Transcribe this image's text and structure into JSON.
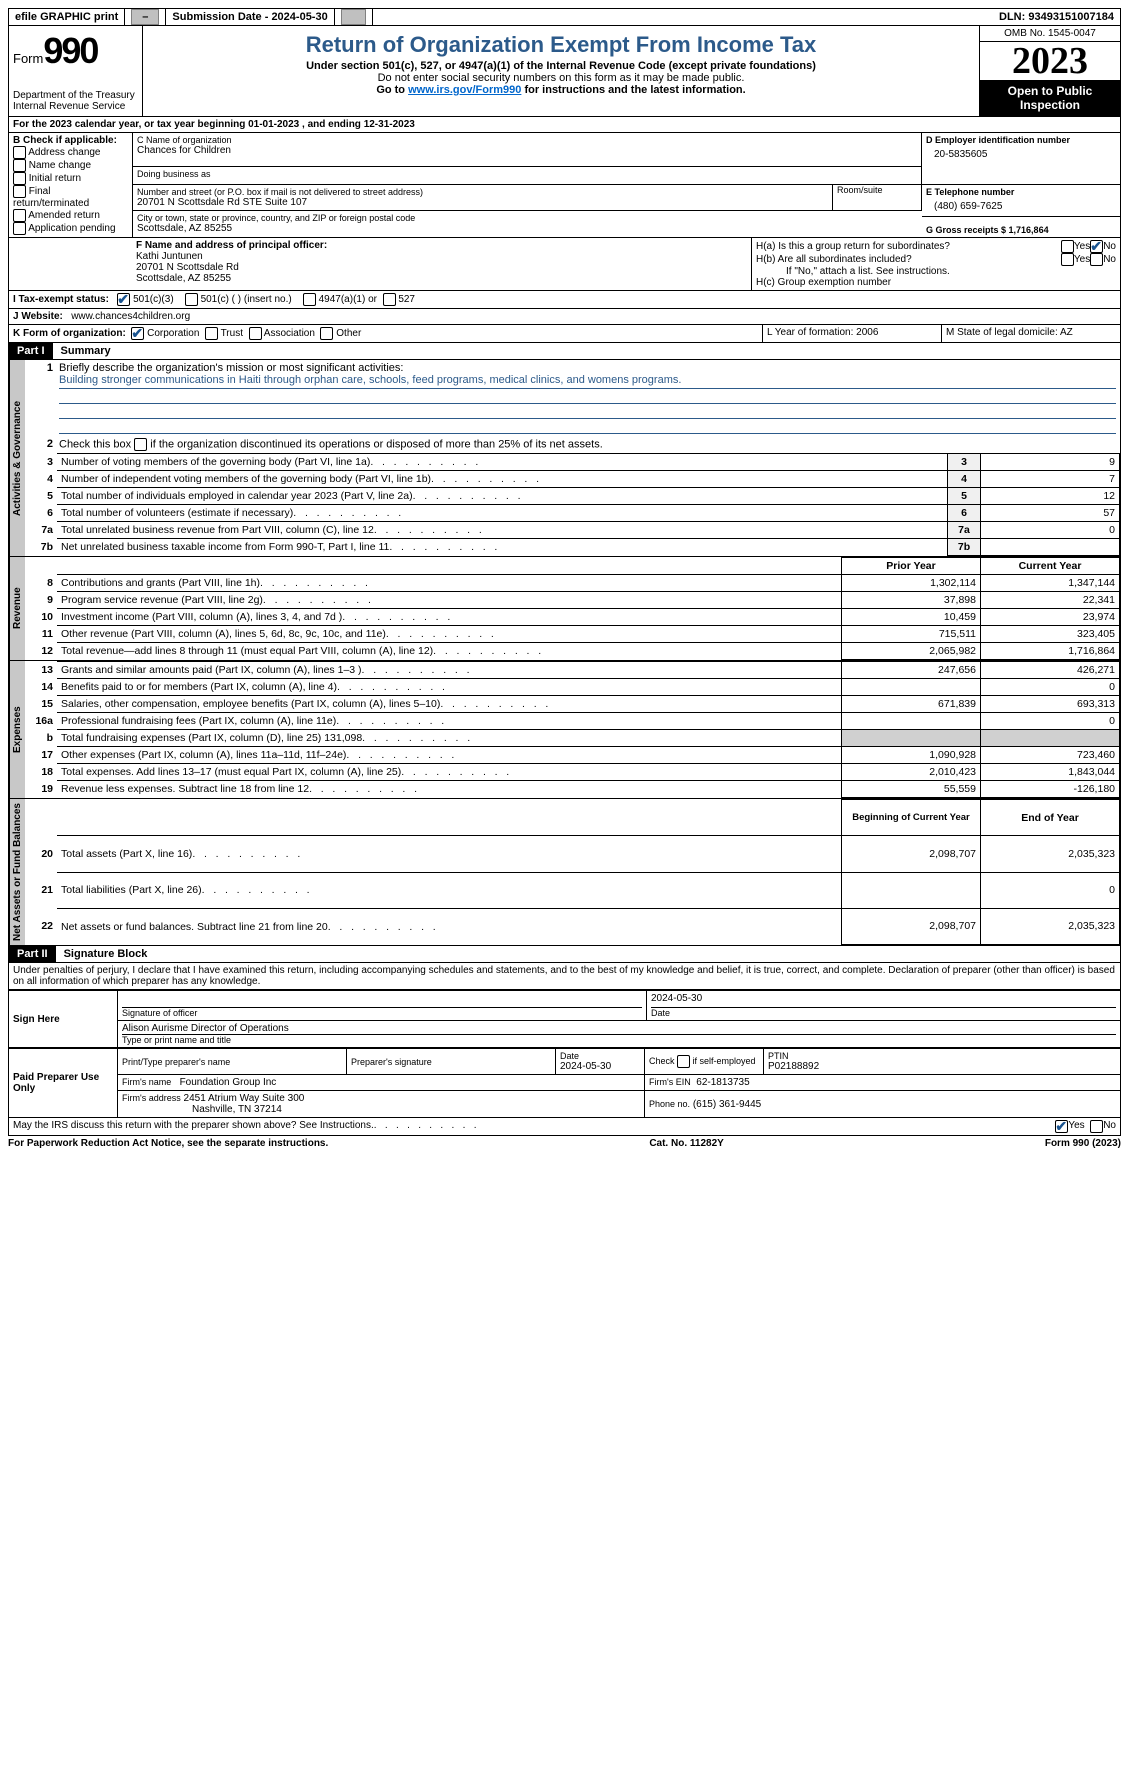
{
  "topbar": {
    "efile": "efile GRAPHIC print",
    "submission_label": "Submission Date - 2024-05-30",
    "dln": "DLN: 93493151007184"
  },
  "header": {
    "form_prefix": "Form",
    "form_num": "990",
    "dept": "Department of the Treasury",
    "irs": "Internal Revenue Service",
    "title": "Return of Organization Exempt From Income Tax",
    "subtitle": "Under section 501(c), 527, or 4947(a)(1) of the Internal Revenue Code (except private foundations)",
    "note1": "Do not enter social security numbers on this form as it may be made public.",
    "note2_pre": "Go to ",
    "note2_link": "www.irs.gov/Form990",
    "note2_post": " for instructions and the latest information.",
    "omb": "OMB No. 1545-0047",
    "year": "2023",
    "inspect": "Open to Public Inspection"
  },
  "lineA": "For the 2023 calendar year, or tax year beginning 01-01-2023    , and ending 12-31-2023",
  "boxB": {
    "label": "B Check if applicable:",
    "opts": [
      "Address change",
      "Name change",
      "Initial return",
      "Final return/terminated",
      "Amended return",
      "Application pending"
    ]
  },
  "boxC": {
    "name_label": "C Name of organization",
    "name": "Chances for Children",
    "dba_label": "Doing business as",
    "addr_label": "Number and street (or P.O. box if mail is not delivered to street address)",
    "addr": "20701 N Scottsdale Rd STE Suite 107",
    "room_label": "Room/suite",
    "city_label": "City or town, state or province, country, and ZIP or foreign postal code",
    "city": "Scottsdale, AZ  85255"
  },
  "boxD": {
    "label": "D Employer identification number",
    "val": "20-5835605"
  },
  "boxE": {
    "label": "E Telephone number",
    "val": "(480) 659-7625"
  },
  "boxG": {
    "label": "G Gross receipts $ 1,716,864"
  },
  "boxF": {
    "label": "F  Name and address of principal officer:",
    "name": "Kathi Juntunen",
    "addr1": "20701 N Scottsdale Rd",
    "addr2": "Scottsdale, AZ  85255"
  },
  "boxH": {
    "a": "H(a)  Is this a group return for subordinates?",
    "b": "H(b)  Are all subordinates included?",
    "b_note": "If \"No,\" attach a list. See instructions.",
    "c": "H(c)  Group exemption number"
  },
  "boxI": {
    "label": "I     Tax-exempt status:",
    "o1": "501(c)(3)",
    "o2": "501(c) (  ) (insert no.)",
    "o3": "4947(a)(1) or",
    "o4": "527"
  },
  "boxJ": {
    "label": "J     Website:",
    "val": "www.chances4children.org"
  },
  "boxK": {
    "label": "K Form of organization:",
    "o1": "Corporation",
    "o2": "Trust",
    "o3": "Association",
    "o4": "Other"
  },
  "boxL": {
    "label": "L Year of formation: 2006"
  },
  "boxM": {
    "label": "M State of legal domicile: AZ"
  },
  "part1": {
    "name": "Part I",
    "title": "Summary",
    "l1": "Briefly describe the organization's mission or most significant activities:",
    "mission": "Building stronger communications in Haiti through orphan care, schools, feed programs, medical clinics, and womens programs.",
    "l2": "Check this box        if the organization discontinued its operations or disposed of more than 25% of its net assets.",
    "vtab1": "Activities & Governance",
    "vtab2": "Revenue",
    "vtab3": "Expenses",
    "vtab4": "Net Assets or Fund Balances",
    "gov": [
      {
        "n": "3",
        "t": "Number of voting members of the governing body (Part VI, line 1a)",
        "v": "9"
      },
      {
        "n": "4",
        "t": "Number of independent voting members of the governing body (Part VI, line 1b)",
        "v": "7"
      },
      {
        "n": "5",
        "t": "Total number of individuals employed in calendar year 2023 (Part V, line 2a)",
        "v": "12"
      },
      {
        "n": "6",
        "t": "Total number of volunteers (estimate if necessary)",
        "v": "57"
      },
      {
        "n": "7a",
        "t": "Total unrelated business revenue from Part VIII, column (C), line 12",
        "v": "0"
      },
      {
        "n": "7b",
        "t": "Net unrelated business taxable income from Form 990-T, Part I, line 11",
        "v": ""
      }
    ],
    "hdr_prior": "Prior Year",
    "hdr_curr": "Current Year",
    "rev": [
      {
        "n": "8",
        "t": "Contributions and grants (Part VIII, line 1h)",
        "p": "1,302,114",
        "c": "1,347,144"
      },
      {
        "n": "9",
        "t": "Program service revenue (Part VIII, line 2g)",
        "p": "37,898",
        "c": "22,341"
      },
      {
        "n": "10",
        "t": "Investment income (Part VIII, column (A), lines 3, 4, and 7d )",
        "p": "10,459",
        "c": "23,974"
      },
      {
        "n": "11",
        "t": "Other revenue (Part VIII, column (A), lines 5, 6d, 8c, 9c, 10c, and 11e)",
        "p": "715,511",
        "c": "323,405"
      },
      {
        "n": "12",
        "t": "Total revenue—add lines 8 through 11 (must equal Part VIII, column (A), line 12)",
        "p": "2,065,982",
        "c": "1,716,864"
      }
    ],
    "exp": [
      {
        "n": "13",
        "t": "Grants and similar amounts paid (Part IX, column (A), lines 1–3 )",
        "p": "247,656",
        "c": "426,271"
      },
      {
        "n": "14",
        "t": "Benefits paid to or for members (Part IX, column (A), line 4)",
        "p": "",
        "c": "0"
      },
      {
        "n": "15",
        "t": "Salaries, other compensation, employee benefits (Part IX, column (A), lines 5–10)",
        "p": "671,839",
        "c": "693,313"
      },
      {
        "n": "16a",
        "t": "Professional fundraising fees (Part IX, column (A), line 11e)",
        "p": "",
        "c": "0"
      },
      {
        "n": "b",
        "t": "Total fundraising expenses (Part IX, column (D), line 25) 131,098",
        "p": "shade",
        "c": "shade"
      },
      {
        "n": "17",
        "t": "Other expenses (Part IX, column (A), lines 11a–11d, 11f–24e)",
        "p": "1,090,928",
        "c": "723,460"
      },
      {
        "n": "18",
        "t": "Total expenses. Add lines 13–17 (must equal Part IX, column (A), line 25)",
        "p": "2,010,423",
        "c": "1,843,044"
      },
      {
        "n": "19",
        "t": "Revenue less expenses. Subtract line 18 from line 12",
        "p": "55,559",
        "c": "-126,180"
      }
    ],
    "hdr_beg": "Beginning of Current Year",
    "hdr_end": "End of Year",
    "net": [
      {
        "n": "20",
        "t": "Total assets (Part X, line 16)",
        "p": "2,098,707",
        "c": "2,035,323"
      },
      {
        "n": "21",
        "t": "Total liabilities (Part X, line 26)",
        "p": "",
        "c": "0"
      },
      {
        "n": "22",
        "t": "Net assets or fund balances. Subtract line 21 from line 20",
        "p": "2,098,707",
        "c": "2,035,323"
      }
    ]
  },
  "part2": {
    "name": "Part II",
    "title": "Signature Block",
    "perjury": "Under penalties of perjury, I declare that I have examined this return, including accompanying schedules and statements, and to the best of my knowledge and belief, it is true, correct, and complete. Declaration of preparer (other than officer) is based on all information of which preparer has any knowledge.",
    "sign_here": "Sign Here",
    "sig_officer": "Signature of officer",
    "sig_date_label": "Date",
    "sig_date": "2024-05-30",
    "officer_name": "Alison Aurisme  Director of Operations",
    "type_name": "Type or print name and title",
    "paid": "Paid Preparer Use Only",
    "prep_name_label": "Print/Type preparer's name",
    "prep_sig_label": "Preparer's signature",
    "prep_date_label": "Date",
    "prep_date": "2024-05-30",
    "self_emp": "Check        if self-employed",
    "ptin_label": "PTIN",
    "ptin": "P02188892",
    "firm_name_label": "Firm's name",
    "firm_name": "Foundation Group Inc",
    "firm_ein_label": "Firm's EIN",
    "firm_ein": "62-1813735",
    "firm_addr_label": "Firm's address",
    "firm_addr1": "2451 Atrium Way Suite 300",
    "firm_addr2": "Nashville, TN  37214",
    "firm_phone_label": "Phone no.",
    "firm_phone": "(615) 361-9445",
    "discuss": "May the IRS discuss this return with the preparer shown above? See Instructions.",
    "yes": "Yes",
    "no": "No"
  },
  "footer": {
    "left": "For Paperwork Reduction Act Notice, see the separate instructions.",
    "mid": "Cat. No. 11282Y",
    "right_pre": "Form ",
    "right_form": "990",
    "right_post": " (2023)"
  }
}
